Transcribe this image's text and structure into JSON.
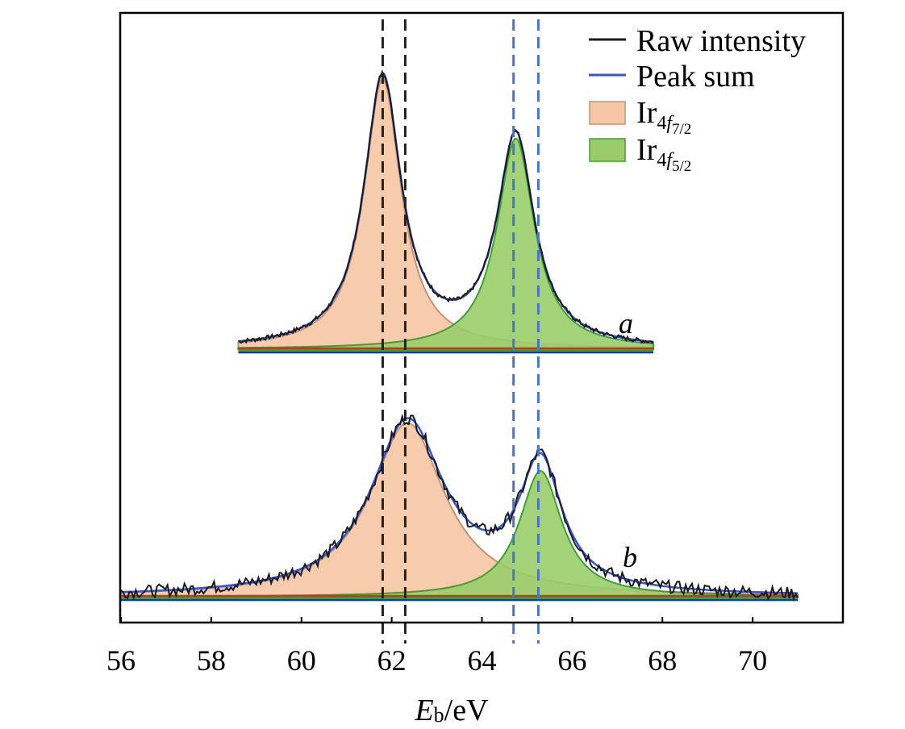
{
  "chart_data": {
    "type": "line",
    "title": "",
    "xlabel": {
      "main": "E",
      "sub": "b",
      "unit": "/eV"
    },
    "ylabel": "",
    "xlim": [
      56,
      72
    ],
    "ylim": [
      0,
      1
    ],
    "x_ticks": [
      56,
      58,
      60,
      62,
      64,
      66,
      68,
      70
    ],
    "grid": false,
    "legend": {
      "placement": "top-right",
      "entries": [
        {
          "key": "raw",
          "label": "Raw intensity",
          "kind": "line",
          "color": "#1a1a1a"
        },
        {
          "key": "sum",
          "label": "Peak sum",
          "kind": "line",
          "color": "#3355dd"
        },
        {
          "key": "p72",
          "base": "Ir",
          "sub1": "4",
          "sub_italic": "f",
          "sub2": "7/2",
          "kind": "area",
          "fill": "#f5c7a4",
          "stroke": "#c89070"
        },
        {
          "key": "p52",
          "base": "Ir",
          "sub1": "4",
          "sub_italic": "f",
          "sub2": "5/2",
          "kind": "area",
          "fill": "#9acd6a",
          "stroke": "#3da030"
        }
      ]
    },
    "reference_lines": [
      {
        "x": 61.8,
        "color": "#222222",
        "style": "dashed"
      },
      {
        "x": 62.3,
        "color": "#222222",
        "style": "dashed"
      },
      {
        "x": 64.7,
        "color": "#4477cc",
        "style": "dashed"
      },
      {
        "x": 65.25,
        "color": "#4477cc",
        "style": "dashed"
      }
    ],
    "colors": {
      "raw": "#1a1a1a",
      "sum": "#3355dd",
      "p72_fill": "#f5c7a4",
      "p72_stroke": "#c89070",
      "p52_fill": "#9acd6a",
      "p52_stroke": "#3da030",
      "baseline_red": "#cc3322",
      "baseline_green": "#22aa22",
      "baseline_blue": "#1133cc"
    },
    "series": [
      {
        "name": "a",
        "x_range": [
          58.6,
          67.8
        ],
        "baseline": 0,
        "peaks": [
          {
            "component": "Ir 4f7/2",
            "center": 61.8,
            "height": 1.0,
            "fwhm": 1.0
          },
          {
            "component": "Ir 4f5/2",
            "center": 64.75,
            "height": 0.78,
            "fwhm": 1.0
          }
        ],
        "raw_noise_amplitude": 0.008
      },
      {
        "name": "b",
        "x_range": [
          56.0,
          71.0
        ],
        "baseline": 0,
        "peaks": [
          {
            "component": "Ir 4f7/2",
            "center": 62.35,
            "height": 0.83,
            "fwhm": 2.0
          },
          {
            "component": "Ir 4f5/2",
            "center": 65.3,
            "height": 0.6,
            "fwhm": 1.15
          }
        ],
        "raw_noise_amplitude": 0.03
      }
    ]
  }
}
